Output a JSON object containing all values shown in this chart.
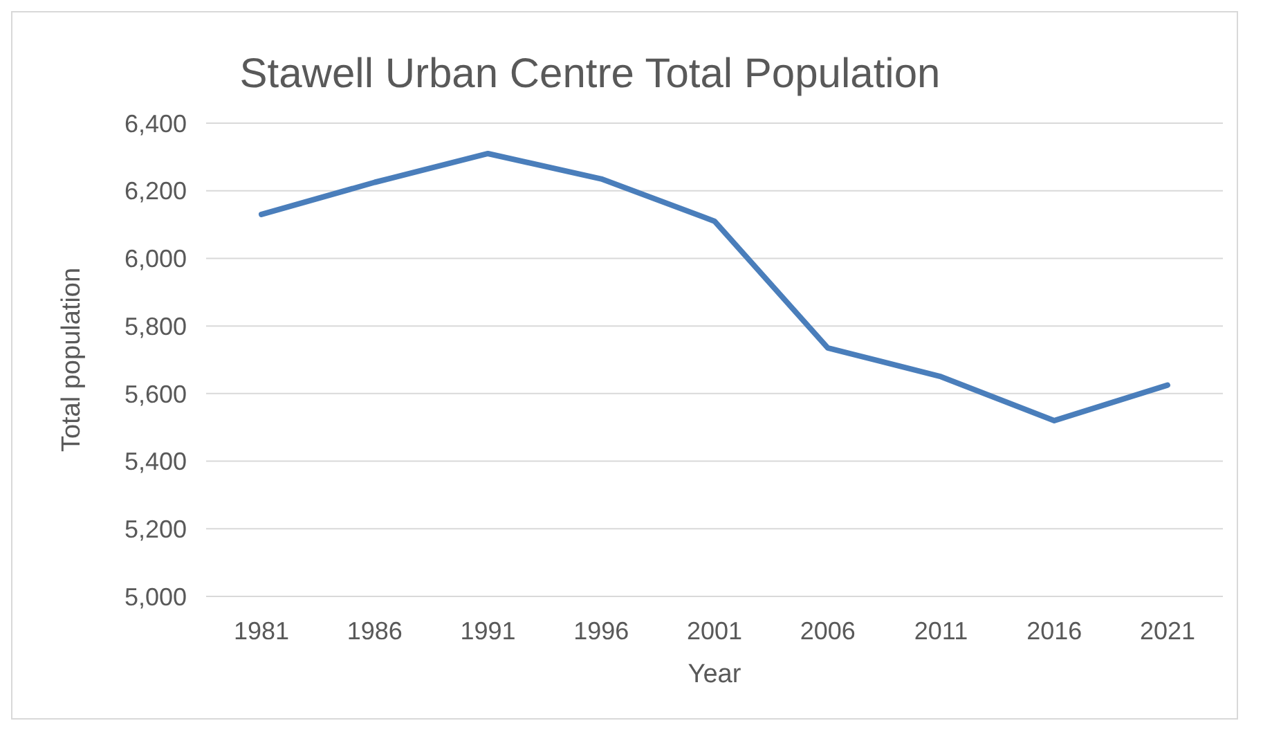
{
  "chart_data": {
    "type": "line",
    "title": "Stawell Urban Centre Total Population",
    "xlabel": "Year",
    "ylabel": "Total population",
    "categories": [
      "1981",
      "1986",
      "1991",
      "1996",
      "2001",
      "2006",
      "2011",
      "2016",
      "2021"
    ],
    "series": [
      {
        "color": "#4a7ebb",
        "values": [
          6130,
          6225,
          6310,
          6235,
          6110,
          5735,
          5650,
          5520,
          5625
        ]
      }
    ],
    "ylim": [
      5000,
      6400
    ],
    "yticks": [
      {
        "value": 5000,
        "label": "5,000"
      },
      {
        "value": 5200,
        "label": "5,200"
      },
      {
        "value": 5400,
        "label": "5,400"
      },
      {
        "value": 5600,
        "label": "5,600"
      },
      {
        "value": 5800,
        "label": "5,800"
      },
      {
        "value": 6000,
        "label": "6,000"
      },
      {
        "value": 6200,
        "label": "6,200"
      },
      {
        "value": 6400,
        "label": "6,400"
      }
    ],
    "grid": "y",
    "legend": false,
    "marker": "none"
  }
}
